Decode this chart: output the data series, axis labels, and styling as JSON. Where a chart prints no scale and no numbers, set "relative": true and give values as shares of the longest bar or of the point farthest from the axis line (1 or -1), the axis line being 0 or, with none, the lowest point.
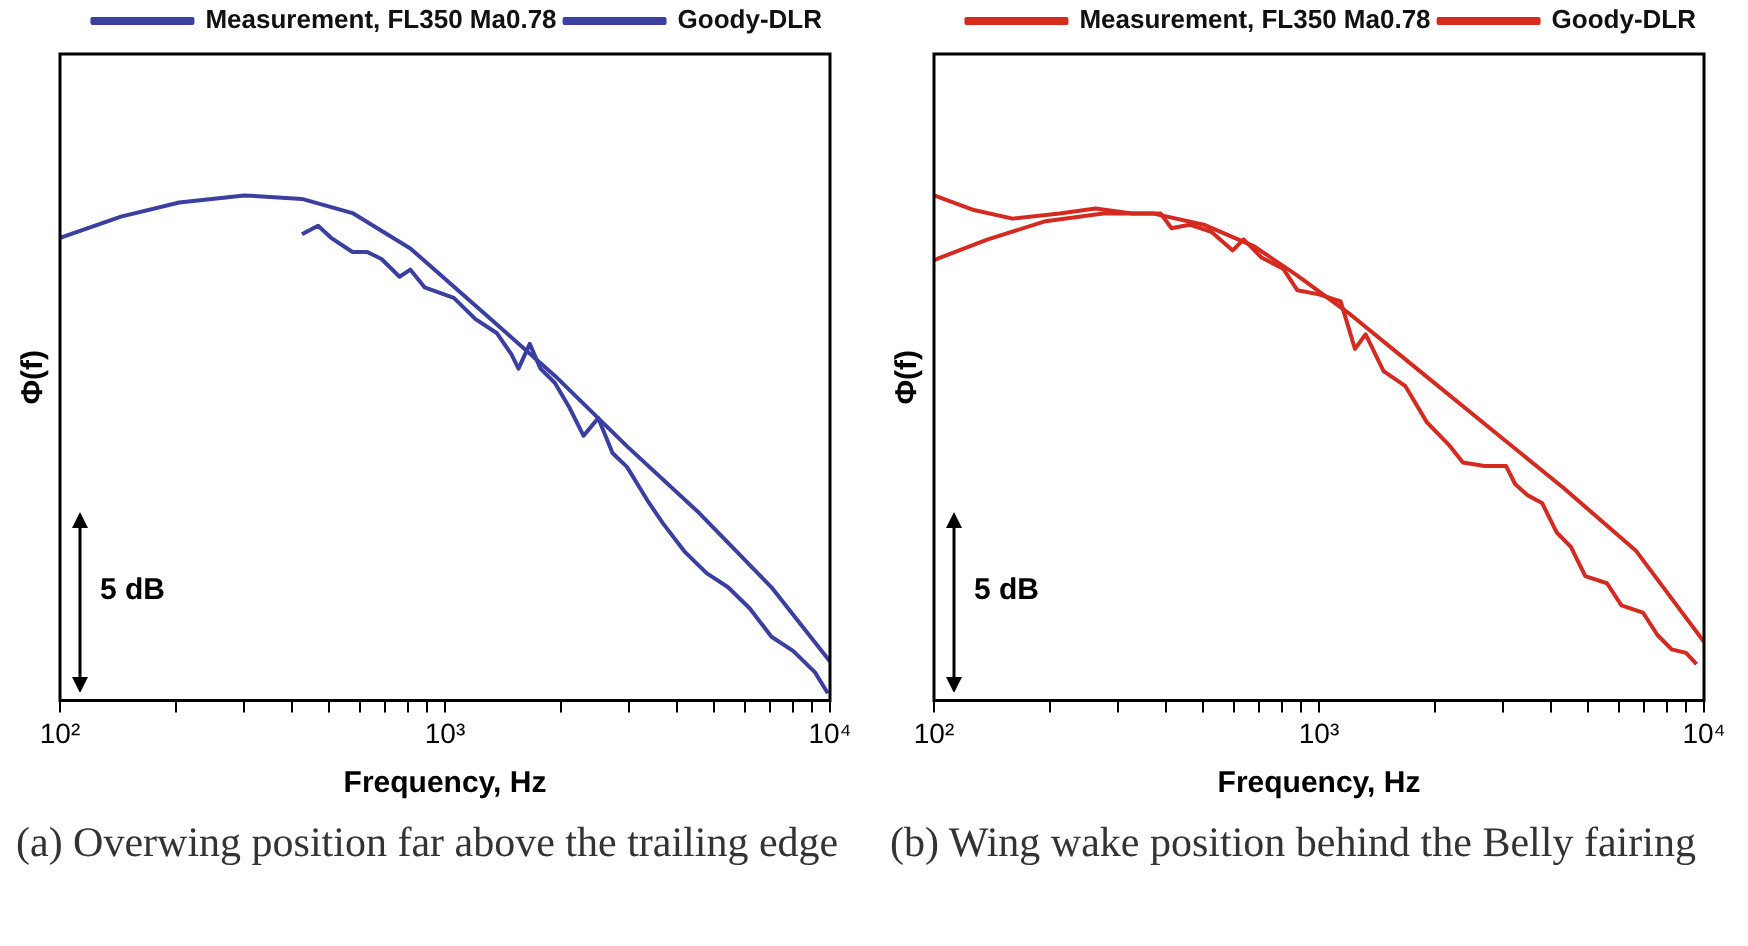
{
  "chart_data": [
    {
      "type": "line",
      "title": "(a) Overwing position far above the trailing edge",
      "xlabel": "Frequency, Hz",
      "ylabel": "Φ(f)",
      "relative": true,
      "log": "x",
      "legend": "top right",
      "annotations": [
        "5 dB"
      ],
      "xlim": [
        100,
        10000
      ],
      "xticks": [
        {
          "value": 100,
          "label": "10²"
        },
        {
          "value": 200,
          "label": null
        },
        {
          "value": 300,
          "label": null
        },
        {
          "value": 400,
          "label": null
        },
        {
          "value": 500,
          "label": null
        },
        {
          "value": 600,
          "label": null
        },
        {
          "value": 700,
          "label": null
        },
        {
          "value": 800,
          "label": null
        },
        {
          "value": 900,
          "label": null
        },
        {
          "value": 1000,
          "label": "10³"
        },
        {
          "value": 2000,
          "label": null
        },
        {
          "value": 3000,
          "label": null
        },
        {
          "value": 4000,
          "label": null
        },
        {
          "value": 5000,
          "label": null
        },
        {
          "value": 6000,
          "label": null
        },
        {
          "value": 7000,
          "label": null
        },
        {
          "value": 8000,
          "label": null
        },
        {
          "value": 9000,
          "label": null
        },
        {
          "value": 10000,
          "label": "10⁴"
        }
      ],
      "series": [
        {
          "name": "Measurement, FL350 Ma0.78",
          "color": "#3a3fa0",
          "x": [
            425,
            468,
            506,
            575,
            628,
            684,
            762,
            813,
            885,
            1054,
            1200,
            1365,
            1488,
            1552,
            1660,
            1770,
            1928,
            2104,
            2291,
            2500,
            2723,
            2972,
            3382,
            3687,
            4198,
            4779,
            5437,
            6190,
            7047,
            8017,
            9134,
            9870
          ],
          "values": [
            0.923,
            0.94,
            0.916,
            0.888,
            0.888,
            0.874,
            0.839,
            0.853,
            0.818,
            0.797,
            0.755,
            0.727,
            0.685,
            0.657,
            0.706,
            0.657,
            0.629,
            0.58,
            0.524,
            0.559,
            0.49,
            0.462,
            0.392,
            0.35,
            0.294,
            0.252,
            0.224,
            0.182,
            0.126,
            0.098,
            0.056,
            0.014
          ]
        },
        {
          "name": "Goody-DLR",
          "color": "#3a3fa0",
          "x": [
            100,
            144,
            204,
            301,
            425,
            575,
            813,
            1253,
            1928,
            2972,
            4575,
            7047,
            10000
          ],
          "values": [
            0.916,
            0.958,
            0.986,
            1,
            0.993,
            0.965,
            0.895,
            0.769,
            0.643,
            0.503,
            0.371,
            0.224,
            0.077
          ]
        }
      ]
    },
    {
      "type": "line",
      "title": "(b) Wing wake position behind the Belly fairing",
      "xlabel": "Frequency, Hz",
      "ylabel": "Φ(f)",
      "relative": true,
      "log": "x",
      "legend": "top right",
      "annotations": [
        "5 dB"
      ],
      "xlim": [
        100,
        10000
      ],
      "xticks": [
        {
          "value": 100,
          "label": "10²"
        },
        {
          "value": 200,
          "label": null
        },
        {
          "value": 300,
          "label": null
        },
        {
          "value": 400,
          "label": null
        },
        {
          "value": 500,
          "label": null
        },
        {
          "value": 600,
          "label": null
        },
        {
          "value": 700,
          "label": null
        },
        {
          "value": 800,
          "label": null
        },
        {
          "value": 900,
          "label": null
        },
        {
          "value": 1000,
          "label": "10³"
        },
        {
          "value": 2000,
          "label": null
        },
        {
          "value": 3000,
          "label": null
        },
        {
          "value": 4000,
          "label": null
        },
        {
          "value": 5000,
          "label": null
        },
        {
          "value": 6000,
          "label": null
        },
        {
          "value": 7000,
          "label": null
        },
        {
          "value": 8000,
          "label": null
        },
        {
          "value": 9000,
          "label": null
        },
        {
          "value": 10000,
          "label": "10⁴"
        }
      ],
      "series": [
        {
          "name": "Measurement, FL350 Ma0.78",
          "color": "#d42a20",
          "x": [
            100,
            127,
            160,
            212,
            263,
            327,
            388,
            414,
            461,
            525,
            597,
            637,
            709,
            807,
            879,
            1000,
            1138,
            1240,
            1322,
            1471,
            1674,
            1905,
            2168,
            2365,
            2691,
            3062,
            3234,
            3485,
            3796,
            4139,
            4511,
            4917,
            5597,
            6102,
            6940,
            7562,
            8241,
            8980,
            9567
          ],
          "values": [
            1,
            0.971,
            0.954,
            0.964,
            0.974,
            0.964,
            0.964,
            0.935,
            0.942,
            0.928,
            0.891,
            0.913,
            0.877,
            0.855,
            0.812,
            0.804,
            0.79,
            0.696,
            0.725,
            0.652,
            0.623,
            0.551,
            0.507,
            0.471,
            0.464,
            0.464,
            0.428,
            0.406,
            0.391,
            0.333,
            0.304,
            0.246,
            0.232,
            0.188,
            0.174,
            0.13,
            0.101,
            0.094,
            0.072
          ]
        },
        {
          "name": "Goody-DLR",
          "color": "#d42a20",
          "x": [
            100,
            138,
            195,
            275,
            372,
            502,
            679,
            879,
            1189,
            1828,
            2812,
            4326,
            6645,
            10000
          ],
          "values": [
            0.872,
            0.913,
            0.949,
            0.964,
            0.964,
            0.942,
            0.899,
            0.841,
            0.768,
            0.652,
            0.536,
            0.42,
            0.297,
            0.116
          ]
        }
      ]
    }
  ]
}
